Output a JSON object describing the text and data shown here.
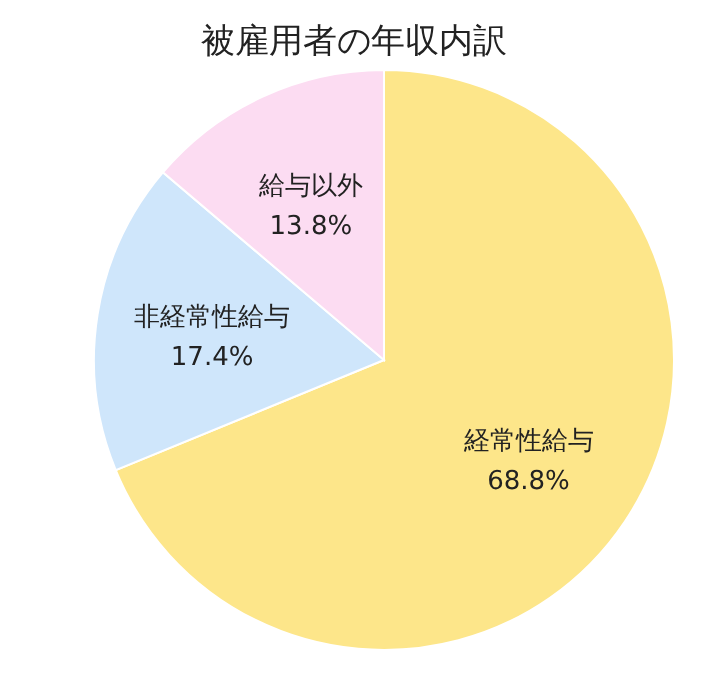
{
  "chart_data": {
    "type": "pie",
    "title": "被雇用者の年収内訳",
    "categories": [
      "経常性給与",
      "非経常性給与",
      "給与以外"
    ],
    "values": [
      68.8,
      17.4,
      13.8
    ],
    "colors": [
      "#fde68a",
      "#cfe6fb",
      "#fcdcf2"
    ],
    "value_labels": [
      "68.8%",
      "17.4%",
      "13.8%"
    ],
    "legend": false
  }
}
